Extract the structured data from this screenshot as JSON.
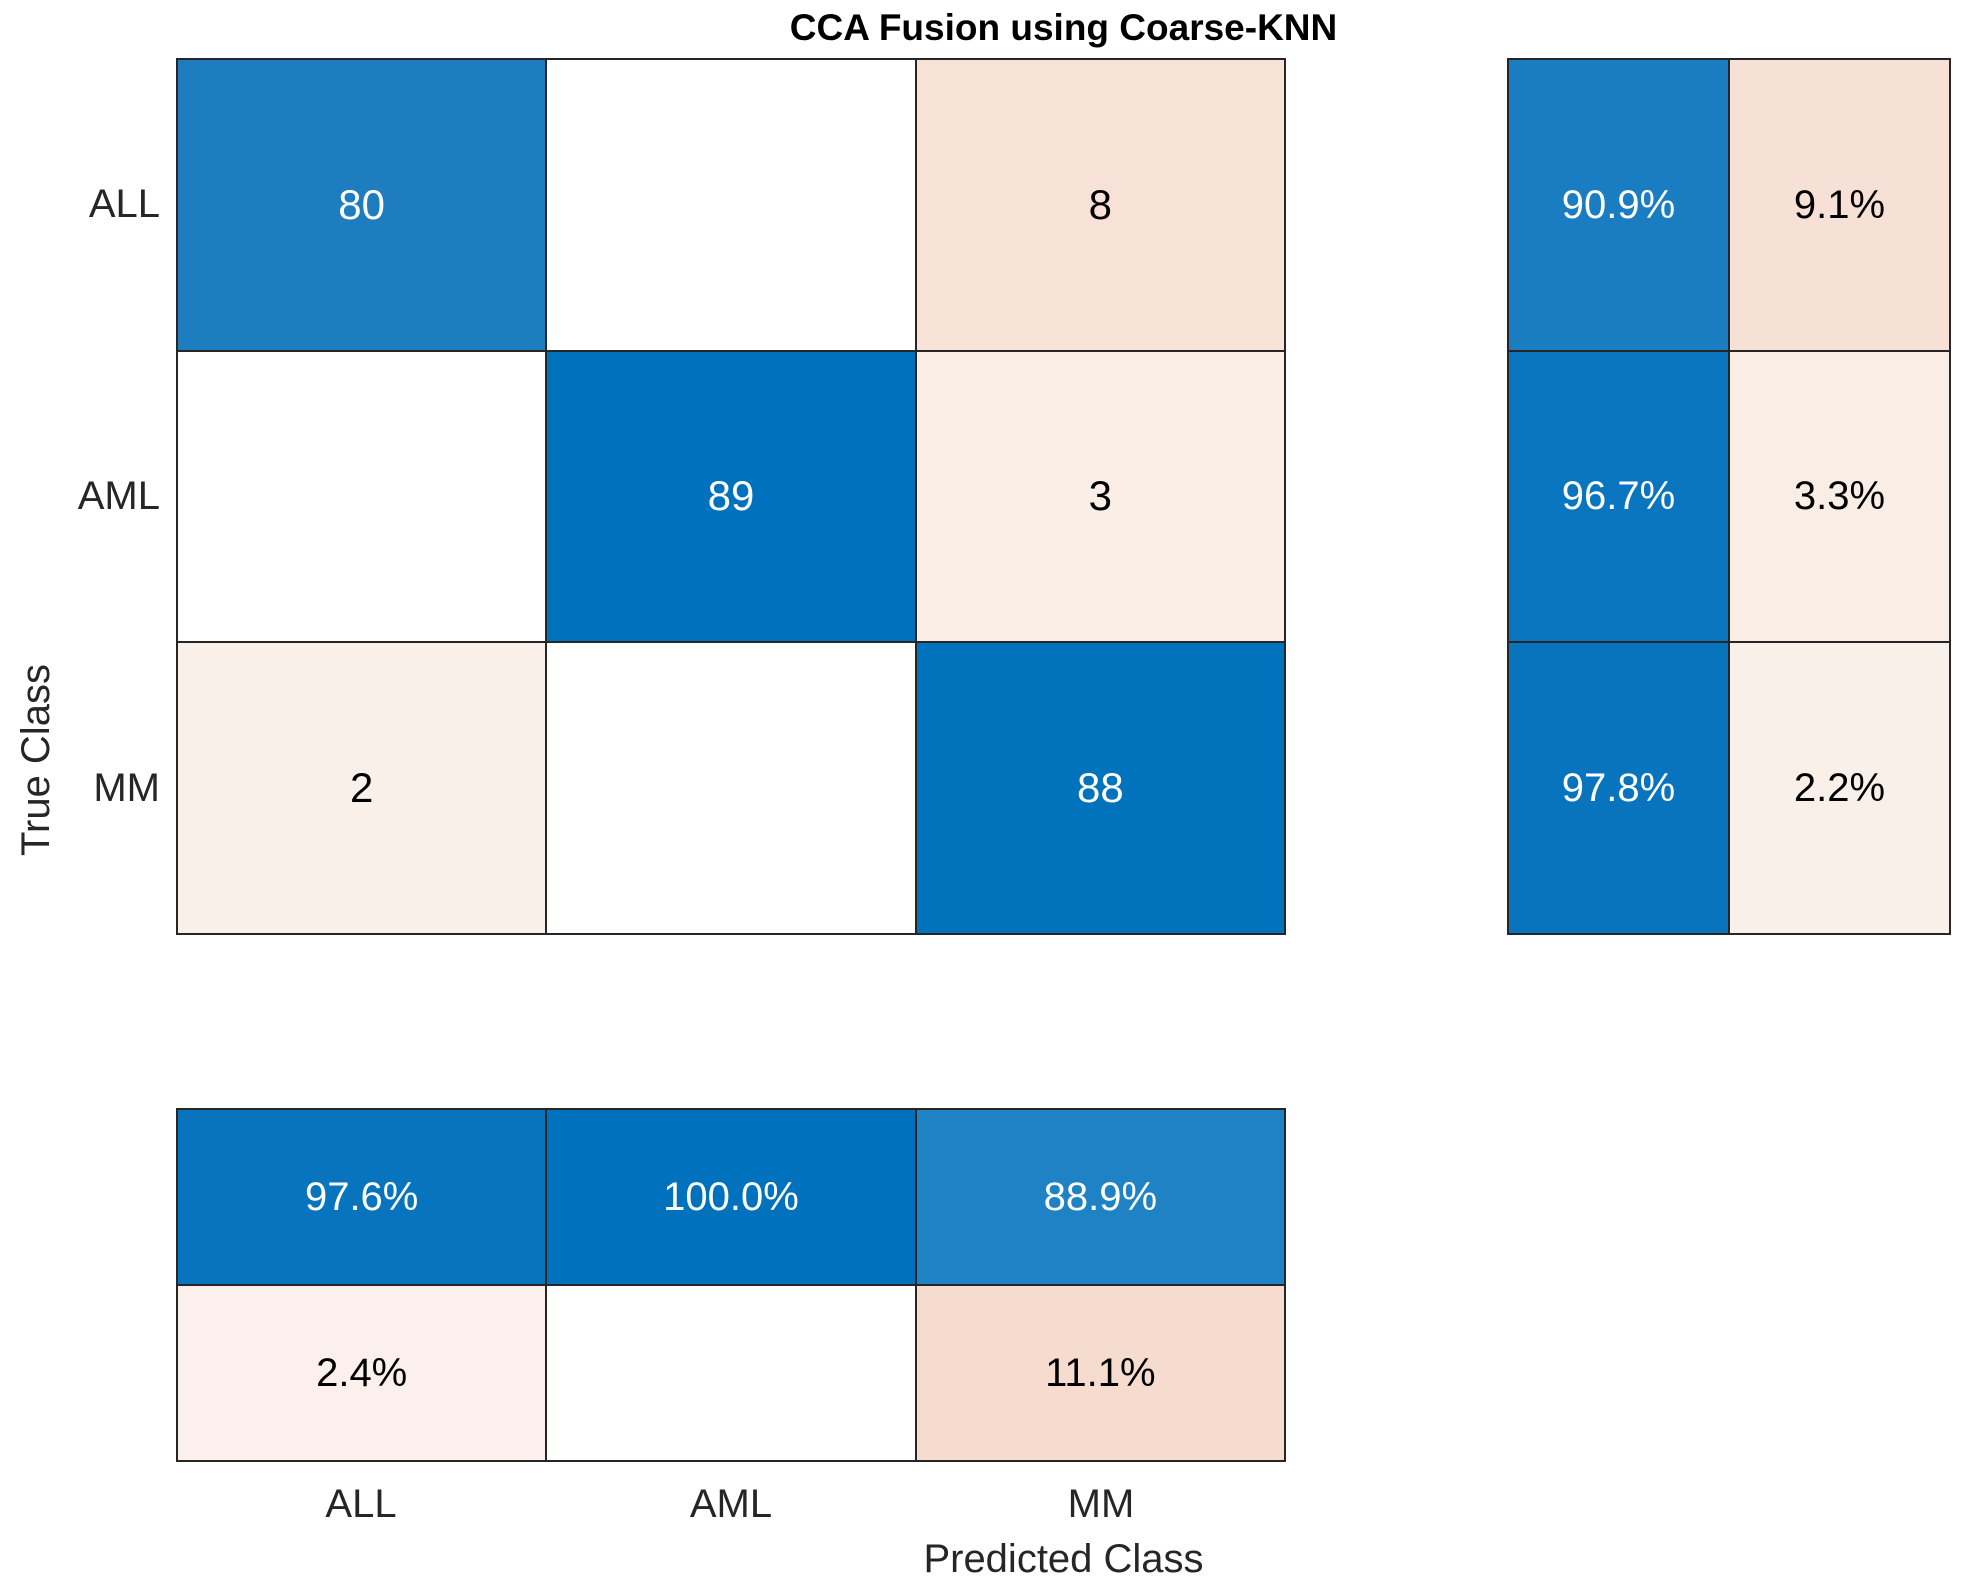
{
  "title": "CCA Fusion using Coarse-KNN",
  "x_axis_label": "Predicted Class",
  "y_axis_label": "True Class",
  "x_tick_labels": [
    "ALL",
    "AML",
    "MM"
  ],
  "y_tick_labels": [
    "ALL",
    "AML",
    "MM"
  ],
  "colors": {
    "grid_line": "#262626",
    "diagonal_base_blue": "#0072BD",
    "axis_text": "#262626",
    "text_on_blue": "#ffffff",
    "text_on_light": "#000000"
  },
  "chart_data": {
    "type": "heatmap",
    "subtype": "confusion-matrix",
    "title": "CCA Fusion using Coarse-KNN",
    "xlabel": "Predicted Class",
    "ylabel": "True Class",
    "classes": [
      "ALL",
      "AML",
      "MM"
    ],
    "counts_rows_true_cols_predicted": [
      [
        80,
        null,
        8
      ],
      [
        null,
        89,
        3
      ],
      [
        2,
        null,
        88
      ]
    ],
    "row_summary_percent": {
      "ALL": [
        "90.9%",
        "9.1%"
      ],
      "AML": [
        "96.7%",
        "3.3%"
      ],
      "MM": [
        "97.8%",
        "2.2%"
      ]
    },
    "column_summary_percent": {
      "ALL": [
        "97.6%",
        "2.4%"
      ],
      "AML": [
        "100.0%",
        ""
      ],
      "MM": [
        "88.9%",
        "11.1%"
      ]
    },
    "legend_position": "none",
    "grid": "on"
  },
  "grids": {
    "main": {
      "columns": 3,
      "cells": [
        {
          "name": "cell-true-ALL-pred-ALL",
          "text": "80",
          "bg": "#1E7DBF",
          "fg": "#ffffff"
        },
        {
          "name": "cell-true-ALL-pred-AML",
          "text": "",
          "bg": "#ffffff",
          "fg": "#000000"
        },
        {
          "name": "cell-true-ALL-pred-MM",
          "text": "8",
          "bg": "#F8E2D8",
          "fg": "#000000"
        },
        {
          "name": "cell-true-AML-pred-ALL",
          "text": "",
          "bg": "#ffffff",
          "fg": "#000000"
        },
        {
          "name": "cell-true-AML-pred-AML",
          "text": "89",
          "bg": "#0072BD",
          "fg": "#ffffff"
        },
        {
          "name": "cell-true-AML-pred-MM",
          "text": "3",
          "bg": "#FAEEE7",
          "fg": "#000000"
        },
        {
          "name": "cell-true-MM-pred-ALL",
          "text": "2",
          "bg": "#FAF0EA",
          "fg": "#000000"
        },
        {
          "name": "cell-true-MM-pred-AML",
          "text": "",
          "bg": "#ffffff",
          "fg": "#000000"
        },
        {
          "name": "cell-true-MM-pred-MM",
          "text": "88",
          "bg": "#0173BD",
          "fg": "#ffffff"
        }
      ]
    },
    "row_summary": {
      "columns": 2,
      "cells": [
        {
          "name": "row-summary-ALL-correct",
          "text": "90.9%",
          "bg": "#1B7DC1",
          "fg": "#ffffff"
        },
        {
          "name": "row-summary-ALL-incorrect",
          "text": "9.1%",
          "bg": "#F7E1D6",
          "fg": "#000000"
        },
        {
          "name": "row-summary-AML-correct",
          "text": "96.7%",
          "bg": "#0975BE",
          "fg": "#ffffff"
        },
        {
          "name": "row-summary-AML-incorrect",
          "text": "3.3%",
          "bg": "#FAEDE6",
          "fg": "#000000"
        },
        {
          "name": "row-summary-MM-correct",
          "text": "97.8%",
          "bg": "#0774BD",
          "fg": "#ffffff"
        },
        {
          "name": "row-summary-MM-incorrect",
          "text": "2.2%",
          "bg": "#FAF0EA",
          "fg": "#000000"
        }
      ]
    },
    "column_summary": {
      "columns": 3,
      "cells": [
        {
          "name": "col-summary-ALL-correct",
          "text": "97.6%",
          "bg": "#0874BE",
          "fg": "#ffffff"
        },
        {
          "name": "col-summary-AML-correct",
          "text": "100.0%",
          "bg": "#0072BD",
          "fg": "#ffffff"
        },
        {
          "name": "col-summary-MM-correct",
          "text": "88.9%",
          "bg": "#1E82C4",
          "fg": "#ffffff"
        },
        {
          "name": "col-summary-ALL-incorrect",
          "text": "2.4%",
          "bg": "#FBF0EB",
          "fg": "#000000"
        },
        {
          "name": "col-summary-AML-incorrect",
          "text": "",
          "bg": "#ffffff",
          "fg": "#000000"
        },
        {
          "name": "col-summary-MM-incorrect",
          "text": "11.1%",
          "bg": "#F5DCCE",
          "fg": "#000000"
        }
      ]
    }
  }
}
